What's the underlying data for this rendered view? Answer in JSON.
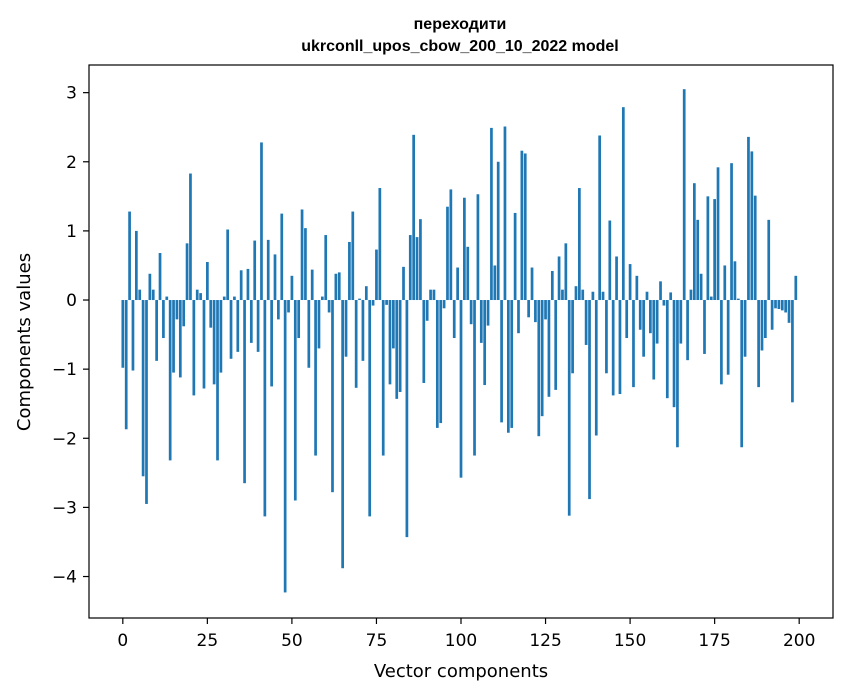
{
  "chart_data": {
    "type": "bar",
    "title": "переходити",
    "subtitle": "ukrconll_upos_cbow_200_10_2022 model",
    "xlabel": "Vector components",
    "ylabel": "Components values",
    "xlim": [
      -10,
      210
    ],
    "ylim": [
      -4.6,
      3.4
    ],
    "xticks": [
      0,
      25,
      50,
      75,
      100,
      125,
      150,
      175,
      200
    ],
    "yticks": [
      -4,
      -3,
      -2,
      -1,
      0,
      1,
      2,
      3
    ],
    "ytick_labels": [
      "−4",
      "−3",
      "−2",
      "−1",
      "0",
      "1",
      "2",
      "3"
    ],
    "grid": false,
    "bar_color": "#1f77b4",
    "x": [
      0,
      1,
      2,
      3,
      4,
      5,
      6,
      7,
      8,
      9,
      10,
      11,
      12,
      13,
      14,
      15,
      16,
      17,
      18,
      19,
      20,
      21,
      22,
      23,
      24,
      25,
      26,
      27,
      28,
      29,
      30,
      31,
      32,
      33,
      34,
      35,
      36,
      37,
      38,
      39,
      40,
      41,
      42,
      43,
      44,
      45,
      46,
      47,
      48,
      49,
      50,
      51,
      52,
      53,
      54,
      55,
      56,
      57,
      58,
      59,
      60,
      61,
      62,
      63,
      64,
      65,
      66,
      67,
      68,
      69,
      70,
      71,
      72,
      73,
      74,
      75,
      76,
      77,
      78,
      79,
      80,
      81,
      82,
      83,
      84,
      85,
      86,
      87,
      88,
      89,
      90,
      91,
      92,
      93,
      94,
      95,
      96,
      97,
      98,
      99,
      100,
      101,
      102,
      103,
      104,
      105,
      106,
      107,
      108,
      109,
      110,
      111,
      112,
      113,
      114,
      115,
      116,
      117,
      118,
      119,
      120,
      121,
      122,
      123,
      124,
      125,
      126,
      127,
      128,
      129,
      130,
      131,
      132,
      133,
      134,
      135,
      136,
      137,
      138,
      139,
      140,
      141,
      142,
      143,
      144,
      145,
      146,
      147,
      148,
      149,
      150,
      151,
      152,
      153,
      154,
      155,
      156,
      157,
      158,
      159,
      160,
      161,
      162,
      163,
      164,
      165,
      166,
      167,
      168,
      169,
      170,
      171,
      172,
      173,
      174,
      175,
      176,
      177,
      178,
      179,
      180,
      181,
      182,
      183,
      184,
      185,
      186,
      187,
      188,
      189,
      190,
      191,
      192,
      193,
      194,
      195,
      196,
      197,
      198,
      199
    ],
    "values": [
      -0.98,
      -1.87,
      1.28,
      -1.02,
      1.0,
      0.15,
      -2.55,
      -2.95,
      0.38,
      0.15,
      -0.88,
      0.68,
      -0.55,
      0.05,
      -2.32,
      -1.05,
      -0.28,
      -1.12,
      -0.38,
      0.82,
      1.83,
      -1.38,
      0.15,
      0.1,
      -1.28,
      0.55,
      -0.4,
      -1.22,
      -2.32,
      -1.05,
      0.05,
      1.02,
      -0.85,
      0.05,
      -0.75,
      0.43,
      -2.65,
      0.45,
      -0.62,
      0.86,
      -0.75,
      2.28,
      -3.13,
      0.87,
      -1.25,
      0.66,
      -0.28,
      1.25,
      -4.23,
      -0.18,
      0.35,
      -2.9,
      -0.55,
      1.31,
      1.04,
      -0.98,
      0.44,
      -2.25,
      -0.7,
      0.05,
      0.94,
      -0.18,
      -2.78,
      0.38,
      0.4,
      -3.88,
      -0.82,
      0.84,
      1.28,
      -1.27,
      0.02,
      -0.88,
      0.2,
      -3.13,
      -0.08,
      0.73,
      1.62,
      -2.25,
      -0.07,
      -1.22,
      -0.7,
      -1.43,
      -1.33,
      0.48,
      -3.43,
      0.94,
      2.39,
      0.91,
      1.17,
      -1.2,
      -0.3,
      0.15,
      0.15,
      -1.85,
      -1.78,
      -0.12,
      1.35,
      1.6,
      -0.55,
      0.47,
      -2.57,
      1.48,
      0.77,
      -0.35,
      -2.25,
      1.53,
      -0.62,
      -1.23,
      -0.37,
      2.49,
      0.5,
      2.0,
      -1.77,
      2.51,
      -1.92,
      -1.85,
      1.26,
      -0.48,
      2.16,
      2.12,
      -0.25,
      0.47,
      -0.32,
      -1.97,
      -1.68,
      -0.28,
      -1.4,
      0.42,
      -1.3,
      0.63,
      0.15,
      0.82,
      -3.12,
      -1.06,
      0.2,
      1.62,
      0.15,
      -0.65,
      -2.88,
      0.12,
      -1.96,
      2.38,
      0.12,
      -1.06,
      1.15,
      -1.38,
      0.63,
      -1.36,
      2.79,
      -0.55,
      0.52,
      -1.26,
      0.35,
      -0.43,
      -0.82,
      0.12,
      -0.48,
      -1.15,
      -0.63,
      0.27,
      -0.08,
      -1.42,
      0.11,
      -1.55,
      -2.13,
      -0.63,
      3.05,
      -0.87,
      0.15,
      1.69,
      1.16,
      0.38,
      -0.78,
      1.5,
      0.05,
      1.46,
      1.92,
      -1.22,
      0.5,
      -1.08,
      1.98,
      0.56,
      0.02,
      -2.13,
      -0.82,
      2.36,
      2.15,
      1.51,
      -1.26,
      -0.73,
      -0.55,
      1.16,
      -0.43,
      -0.12,
      -0.13,
      -0.15,
      -0.18,
      -0.33,
      -1.48,
      0.35
    ]
  }
}
